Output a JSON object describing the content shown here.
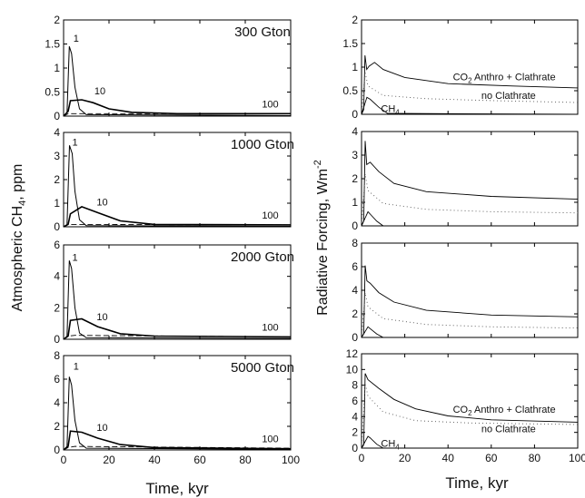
{
  "chart_data": [
    {
      "type": "line",
      "title": "300 Gton",
      "ylim": [
        0,
        2
      ],
      "yticks": [
        0,
        0.5,
        1,
        1.5,
        2
      ],
      "xlim": [
        0,
        100
      ],
      "xticks": [
        0,
        20,
        40,
        60,
        80,
        100
      ],
      "annotations": [
        {
          "text": "1",
          "x": 5.5,
          "y": 1.55
        },
        {
          "text": "10",
          "x": 16,
          "y": 0.45
        },
        {
          "text": "100",
          "x": 91,
          "y": 0.18
        }
      ],
      "series": [
        {
          "style": "solid",
          "values": [
            [
              0,
              0
            ],
            [
              1.5,
              0.08
            ],
            [
              2.5,
              1.45
            ],
            [
              3.5,
              1.3
            ],
            [
              5,
              0.6
            ],
            [
              7,
              0.15
            ],
            [
              10,
              0.03
            ],
            [
              100,
              0.01
            ]
          ]
        },
        {
          "style": "solid",
          "values": [
            [
              0,
              0
            ],
            [
              2,
              0.1
            ],
            [
              3,
              0.32
            ],
            [
              8,
              0.34
            ],
            [
              13,
              0.28
            ],
            [
              20,
              0.15
            ],
            [
              30,
              0.08
            ],
            [
              50,
              0.05
            ],
            [
              100,
              0.05
            ]
          ]
        },
        {
          "style": "dashed",
          "values": [
            [
              0,
              0
            ],
            [
              2,
              0.05
            ],
            [
              5,
              0.05
            ],
            [
              100,
              0.05
            ]
          ]
        }
      ]
    },
    {
      "type": "line",
      "title": "1000 Gton",
      "ylim": [
        0,
        4
      ],
      "yticks": [
        0,
        1,
        2,
        3,
        4
      ],
      "xlim": [
        0,
        100
      ],
      "xticks": [
        0,
        20,
        40,
        60,
        80,
        100
      ],
      "annotations": [
        {
          "text": "1",
          "x": 5,
          "y": 3.45
        },
        {
          "text": "10",
          "x": 17,
          "y": 0.9
        },
        {
          "text": "100",
          "x": 91,
          "y": 0.35
        }
      ],
      "series": [
        {
          "style": "solid",
          "values": [
            [
              0,
              0
            ],
            [
              1.5,
              0.1
            ],
            [
              2.6,
              3.45
            ],
            [
              3.8,
              3.1
            ],
            [
              5,
              1.5
            ],
            [
              7,
              0.3
            ],
            [
              10,
              0.05
            ],
            [
              100,
              0.02
            ]
          ]
        },
        {
          "style": "solid",
          "values": [
            [
              0,
              0
            ],
            [
              2,
              0.1
            ],
            [
              3,
              0.55
            ],
            [
              8,
              0.85
            ],
            [
              15,
              0.6
            ],
            [
              25,
              0.25
            ],
            [
              40,
              0.1
            ],
            [
              100,
              0.08
            ]
          ]
        },
        {
          "style": "dashed",
          "values": [
            [
              0,
              0
            ],
            [
              2,
              0.1
            ],
            [
              5,
              0.1
            ],
            [
              100,
              0.08
            ]
          ]
        }
      ]
    },
    {
      "type": "line",
      "title": "2000 Gton",
      "ylim": [
        0,
        6
      ],
      "yticks": [
        0,
        2,
        4,
        6
      ],
      "xlim": [
        0,
        100
      ],
      "xticks": [
        0,
        20,
        40,
        60,
        80,
        100
      ],
      "annotations": [
        {
          "text": "1",
          "x": 5,
          "y": 5
        },
        {
          "text": "10",
          "x": 17,
          "y": 1.2
        },
        {
          "text": "100",
          "x": 91,
          "y": 0.55
        }
      ],
      "series": [
        {
          "style": "solid",
          "values": [
            [
              0,
              0
            ],
            [
              1.5,
              0.2
            ],
            [
              2.5,
              5
            ],
            [
              3.5,
              4.5
            ],
            [
              5,
              2
            ],
            [
              7,
              0.4
            ],
            [
              10,
              0.1
            ],
            [
              100,
              0.05
            ]
          ]
        },
        {
          "style": "solid",
          "values": [
            [
              0,
              0
            ],
            [
              2,
              0.2
            ],
            [
              3,
              1.2
            ],
            [
              8,
              1.3
            ],
            [
              15,
              0.8
            ],
            [
              25,
              0.35
            ],
            [
              40,
              0.2
            ],
            [
              100,
              0.15
            ]
          ]
        },
        {
          "style": "dashed",
          "values": [
            [
              0,
              0
            ],
            [
              2,
              0.2
            ],
            [
              5,
              0.25
            ],
            [
              100,
              0.15
            ]
          ]
        }
      ]
    },
    {
      "type": "line",
      "title": "5000 Gton",
      "ylim": [
        0,
        8
      ],
      "yticks": [
        0,
        2,
        4,
        6,
        8
      ],
      "xlim": [
        0,
        100
      ],
      "xticks": [
        0,
        20,
        40,
        60,
        80,
        100
      ],
      "annotations": [
        {
          "text": "1",
          "x": 5.5,
          "y": 6.8
        },
        {
          "text": "10",
          "x": 17,
          "y": 1.6
        },
        {
          "text": "100",
          "x": 91,
          "y": 0.65
        }
      ],
      "series": [
        {
          "style": "solid",
          "values": [
            [
              0,
              0
            ],
            [
              1.5,
              0.3
            ],
            [
              2.5,
              6.2
            ],
            [
              3.5,
              5.5
            ],
            [
              5,
              2.5
            ],
            [
              7,
              0.6
            ],
            [
              10,
              0.15
            ],
            [
              100,
              0.05
            ]
          ]
        },
        {
          "style": "solid",
          "values": [
            [
              0,
              0
            ],
            [
              2,
              0.3
            ],
            [
              3,
              1.6
            ],
            [
              8,
              1.5
            ],
            [
              15,
              1
            ],
            [
              25,
              0.45
            ],
            [
              40,
              0.2
            ],
            [
              100,
              0.1
            ]
          ]
        },
        {
          "style": "dashed",
          "values": [
            [
              0,
              0
            ],
            [
              2,
              0.2
            ],
            [
              5,
              0.3
            ],
            [
              100,
              0.15
            ]
          ]
        }
      ]
    },
    {
      "type": "line",
      "title": "",
      "ylim": [
        0,
        2
      ],
      "yticks": [
        0,
        0.5,
        1,
        1.5,
        2
      ],
      "xlim": [
        0,
        100
      ],
      "xticks": [
        0,
        20,
        40,
        60,
        80,
        100
      ],
      "annotations": [
        {
          "text": "CO2 Anthro + Clathrate",
          "x": 66,
          "y": 0.72
        },
        {
          "text": "no Clathrate",
          "x": 68,
          "y": 0.33
        },
        {
          "text": "CH4",
          "x": 9,
          "y": 0.05
        }
      ],
      "series": [
        {
          "style": "solid",
          "values": [
            [
              0,
              0
            ],
            [
              1,
              0.1
            ],
            [
              1.6,
              1.25
            ],
            [
              2.4,
              0.95
            ],
            [
              3.5,
              1.02
            ],
            [
              6,
              1.1
            ],
            [
              10,
              0.95
            ],
            [
              20,
              0.78
            ],
            [
              40,
              0.65
            ],
            [
              70,
              0.6
            ],
            [
              100,
              0.56
            ]
          ]
        },
        {
          "style": "dotted",
          "values": [
            [
              0,
              0
            ],
            [
              1.6,
              0.9
            ],
            [
              3,
              0.6
            ],
            [
              10,
              0.4
            ],
            [
              30,
              0.33
            ],
            [
              60,
              0.29
            ],
            [
              100,
              0.25
            ]
          ]
        },
        {
          "style": "solid",
          "values": [
            [
              0,
              0
            ],
            [
              2.5,
              0.36
            ],
            [
              4,
              0.32
            ],
            [
              8,
              0.15
            ],
            [
              12,
              0.02
            ],
            [
              100,
              0
            ]
          ]
        }
      ]
    },
    {
      "type": "line",
      "title": "",
      "ylim": [
        0,
        4
      ],
      "yticks": [
        0,
        1,
        2,
        3,
        4
      ],
      "xlim": [
        0,
        100
      ],
      "xticks": [
        0,
        20,
        40,
        60,
        80,
        100
      ],
      "annotations": [],
      "series": [
        {
          "style": "solid",
          "values": [
            [
              0,
              0
            ],
            [
              1,
              0.2
            ],
            [
              1.7,
              3.6
            ],
            [
              2.4,
              2.6
            ],
            [
              4,
              2.7
            ],
            [
              8,
              2.3
            ],
            [
              15,
              1.8
            ],
            [
              30,
              1.45
            ],
            [
              60,
              1.25
            ],
            [
              100,
              1.13
            ]
          ]
        },
        {
          "style": "dotted",
          "values": [
            [
              0,
              0
            ],
            [
              1.7,
              2.2
            ],
            [
              3,
              1.5
            ],
            [
              10,
              0.95
            ],
            [
              30,
              0.7
            ],
            [
              60,
              0.6
            ],
            [
              100,
              0.55
            ]
          ]
        },
        {
          "style": "solid",
          "values": [
            [
              0,
              0
            ],
            [
              3,
              0.6
            ],
            [
              4,
              0.5
            ],
            [
              7,
              0.2
            ],
            [
              10,
              0
            ],
            [
              100,
              0
            ]
          ]
        }
      ]
    },
    {
      "type": "line",
      "title": "",
      "ylim": [
        0,
        8
      ],
      "yticks": [
        0,
        2,
        4,
        6,
        8
      ],
      "xlim": [
        0,
        100
      ],
      "xticks": [
        0,
        20,
        40,
        60,
        80,
        100
      ],
      "annotations": [],
      "series": [
        {
          "style": "solid",
          "values": [
            [
              0,
              0
            ],
            [
              1,
              0.3
            ],
            [
              1.7,
              6.1
            ],
            [
              2.5,
              4.8
            ],
            [
              4,
              4.6
            ],
            [
              8,
              3.8
            ],
            [
              15,
              3
            ],
            [
              30,
              2.3
            ],
            [
              60,
              1.9
            ],
            [
              100,
              1.75
            ]
          ]
        },
        {
          "style": "dotted",
          "values": [
            [
              0,
              0
            ],
            [
              1.7,
              3.8
            ],
            [
              3,
              2.6
            ],
            [
              10,
              1.6
            ],
            [
              30,
              1.1
            ],
            [
              60,
              0.9
            ],
            [
              100,
              0.8
            ]
          ]
        },
        {
          "style": "solid",
          "values": [
            [
              0,
              0
            ],
            [
              3,
              0.9
            ],
            [
              4,
              0.75
            ],
            [
              7,
              0.3
            ],
            [
              10,
              0
            ],
            [
              100,
              0
            ]
          ]
        }
      ]
    },
    {
      "type": "line",
      "title": "",
      "ylim": [
        0,
        12
      ],
      "yticks": [
        0,
        2,
        4,
        6,
        8,
        10,
        12
      ],
      "xlim": [
        0,
        100
      ],
      "xticks": [
        0,
        20,
        40,
        60,
        80,
        100
      ],
      "annotations": [
        {
          "text": "CO2 Anthro + Clathrate",
          "x": 66,
          "y": 4.5
        },
        {
          "text": "no Clathrate",
          "x": 68,
          "y": 2
        },
        {
          "text": "CH4",
          "x": 9,
          "y": 0.15
        }
      ],
      "series": [
        {
          "style": "solid",
          "values": [
            [
              0,
              0
            ],
            [
              1,
              0.4
            ],
            [
              1.7,
              9.5
            ],
            [
              3,
              8.7
            ],
            [
              8,
              7.6
            ],
            [
              15,
              6.2
            ],
            [
              25,
              5
            ],
            [
              40,
              4.1
            ],
            [
              60,
              3.6
            ],
            [
              100,
              3.3
            ]
          ]
        },
        {
          "style": "dotted",
          "values": [
            [
              0,
              0
            ],
            [
              1.7,
              8.2
            ],
            [
              3,
              6.6
            ],
            [
              10,
              4.6
            ],
            [
              25,
              3.5
            ],
            [
              50,
              3.2
            ],
            [
              100,
              3.0
            ]
          ]
        },
        {
          "style": "solid",
          "values": [
            [
              0,
              0
            ],
            [
              3,
              1.5
            ],
            [
              4,
              1.3
            ],
            [
              7,
              0.5
            ],
            [
              10,
              0
            ],
            [
              100,
              0
            ]
          ]
        }
      ]
    }
  ],
  "labels": {
    "left_ylabel": "Atmospheric CH4, ppm",
    "right_ylabel": "Radiative Forcing, Wm-2",
    "left_xlabel": "Time, kyr",
    "right_xlabel": "Time, kyr"
  }
}
